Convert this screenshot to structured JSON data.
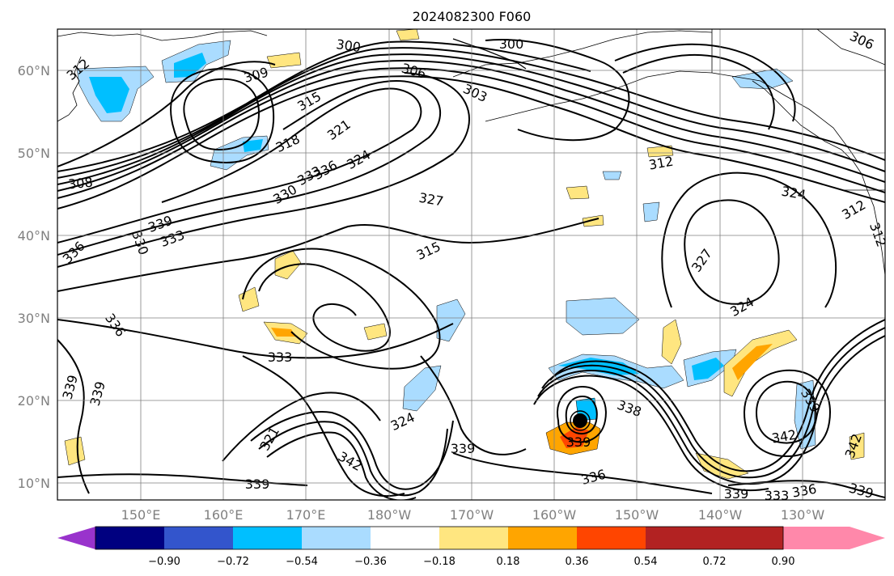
{
  "title": "2024082300 F060",
  "lat_labels": [
    "60°N",
    "50°N",
    "40°N",
    "30°N",
    "20°N",
    "10°N"
  ],
  "lon_labels": [
    "150°E",
    "160°E",
    "170°E",
    "180°W",
    "170°W",
    "160°W",
    "150°W",
    "140°W",
    "130°W"
  ],
  "colorbar": {
    "tick_labels": [
      "−0.90",
      "−0.72",
      "−0.54",
      "−0.36",
      "−0.18",
      "0.18",
      "0.36",
      "0.54",
      "0.72",
      "0.90"
    ],
    "colors": [
      "#9933cc",
      "#000080",
      "#3355cc",
      "#00bfff",
      "#aadcff",
      "#ffffff",
      "#ffe680",
      "#ffa500",
      "#ff4500",
      "#b22222",
      "#ff88aa"
    ]
  },
  "contour_labels": [
    "300",
    "300",
    "306",
    "306",
    "312",
    "309",
    "303",
    "315",
    "318",
    "321",
    "324",
    "327",
    "330",
    "333",
    "336",
    "308",
    "339",
    "330",
    "333",
    "336",
    "315",
    "312",
    "324",
    "327",
    "324",
    "312",
    "312",
    "336",
    "333",
    "339",
    "339",
    "321",
    "324",
    "342",
    "339",
    "339",
    "338",
    "336",
    "339",
    "342",
    "339",
    "342",
    "339",
    "336",
    "339",
    "333"
  ],
  "storm_marker": "tropical-cyclone-center"
}
